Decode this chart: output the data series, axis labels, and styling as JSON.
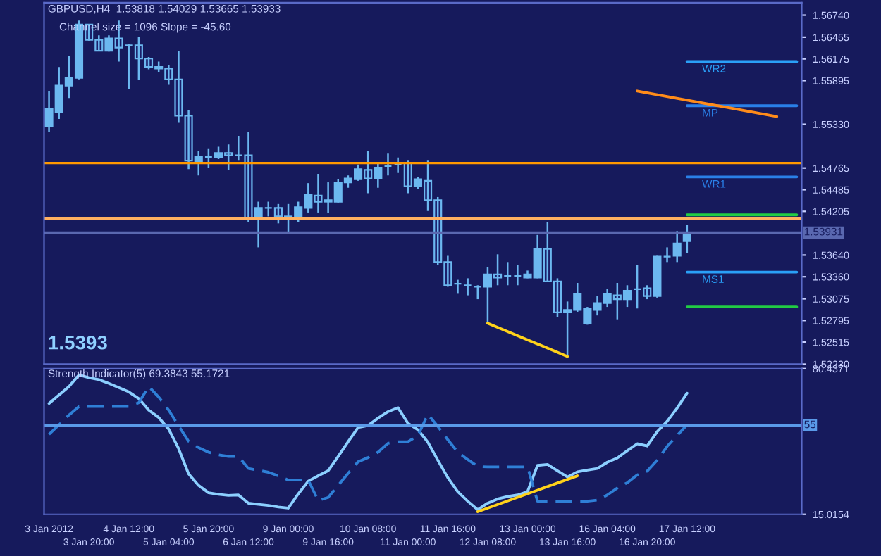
{
  "chart_data": [
    {
      "type": "candlestick",
      "title": "GBPUSD,H4  1.53818 1.54029 1.53665 1.53933",
      "annotations": [
        "Channel size = 1096 Slope = -45.60",
        "1.5393"
      ],
      "categories": [
        null,
        null,
        null,
        null,
        null,
        null,
        null,
        null,
        null,
        null,
        null,
        null,
        null,
        null,
        null,
        null,
        null,
        null,
        null,
        null,
        null,
        null,
        null,
        null,
        null,
        null,
        null,
        null,
        null,
        null,
        null,
        null,
        null,
        null,
        null,
        null,
        null,
        null,
        null,
        null,
        null,
        null,
        null,
        null,
        null,
        null,
        null,
        null,
        null,
        null,
        null,
        null,
        null,
        null,
        null,
        null,
        null,
        null,
        null,
        null,
        null,
        null,
        null,
        null,
        null,
        null,
        null,
        null,
        null,
        null,
        null,
        null,
        null,
        null,
        null,
        null
      ],
      "ohlc": [
        [
          1.553,
          1.5576,
          1.5523,
          1.5553
        ],
        [
          1.5549,
          1.5607,
          1.554,
          1.5583
        ],
        [
          1.5583,
          1.5621,
          1.5567,
          1.5593
        ],
        [
          1.5593,
          1.5667,
          1.5591,
          1.5662
        ],
        [
          1.5662,
          1.5662,
          1.5641,
          1.5642
        ],
        [
          1.5642,
          1.5648,
          1.5628,
          1.5628
        ],
        [
          1.5628,
          1.5648,
          1.5627,
          1.5644
        ],
        [
          1.5644,
          1.5667,
          1.5614,
          1.5632
        ],
        [
          1.5635,
          1.5637,
          1.5579,
          1.5635
        ],
        [
          1.5635,
          1.5646,
          1.559,
          1.5618
        ],
        [
          1.5618,
          1.562,
          1.5604,
          1.5607
        ],
        [
          1.5607,
          1.5614,
          1.56,
          1.5605
        ],
        [
          1.5605,
          1.5609,
          1.5584,
          1.5591
        ],
        [
          1.5591,
          1.5628,
          1.5535,
          1.5544
        ],
        [
          1.5544,
          1.5551,
          1.5475,
          1.5486
        ],
        [
          1.5484,
          1.5498,
          1.5467,
          1.5491
        ],
        [
          1.5491,
          1.5502,
          1.5477,
          1.5491
        ],
        [
          1.5491,
          1.5504,
          1.5488,
          1.5496
        ],
        [
          1.5496,
          1.5507,
          1.5474,
          1.5493
        ],
        [
          1.5493,
          1.5518,
          1.5486,
          1.5493
        ],
        [
          1.5493,
          1.5523,
          1.5407,
          1.5411
        ],
        [
          1.5412,
          1.5433,
          1.5374,
          1.5425
        ],
        [
          1.5425,
          1.5433,
          1.5414,
          1.5425
        ],
        [
          1.5425,
          1.543,
          1.5405,
          1.5414
        ],
        [
          1.5414,
          1.543,
          1.5393,
          1.5412
        ],
        [
          1.5411,
          1.5433,
          1.5407,
          1.5426
        ],
        [
          1.5425,
          1.5457,
          1.5419,
          1.5442
        ],
        [
          1.5441,
          1.5469,
          1.5419,
          1.5433
        ],
        [
          1.5433,
          1.5458,
          1.5418,
          1.5435
        ],
        [
          1.5433,
          1.5462,
          1.5432,
          1.5458
        ],
        [
          1.5458,
          1.5467,
          1.5451,
          1.5463
        ],
        [
          1.5462,
          1.5481,
          1.546,
          1.5475
        ],
        [
          1.5474,
          1.5498,
          1.5444,
          1.5463
        ],
        [
          1.5463,
          1.5484,
          1.5451,
          1.5477
        ],
        [
          1.5479,
          1.5495,
          1.5467,
          1.5479
        ],
        [
          1.5481,
          1.549,
          1.547,
          1.5481
        ],
        [
          1.5483,
          1.5486,
          1.5444,
          1.5453
        ],
        [
          1.5453,
          1.5465,
          1.5449,
          1.5462
        ],
        [
          1.546,
          1.5486,
          1.5421,
          1.5435
        ],
        [
          1.5435,
          1.5439,
          1.5351,
          1.5355
        ],
        [
          1.5355,
          1.5363,
          1.5323,
          1.5325
        ],
        [
          1.5327,
          1.5332,
          1.5314,
          1.5327
        ],
        [
          1.5325,
          1.5334,
          1.5312,
          1.5325
        ],
        [
          1.5323,
          1.5325,
          1.5307,
          1.5323
        ],
        [
          1.5323,
          1.5348,
          1.5276,
          1.5339
        ],
        [
          1.5339,
          1.5365,
          1.5325,
          1.5335
        ],
        [
          1.5337,
          1.5355,
          1.5325,
          1.5337
        ],
        [
          1.5337,
          1.5351,
          1.5325,
          1.5337
        ],
        [
          1.5335,
          1.5344,
          1.5334,
          1.5339
        ],
        [
          1.5335,
          1.539,
          1.5334,
          1.5372
        ],
        [
          1.5372,
          1.5407,
          1.533,
          1.533
        ],
        [
          1.533,
          1.5334,
          1.5284,
          1.529
        ],
        [
          1.529,
          1.5304,
          1.5232,
          1.5293
        ],
        [
          1.5293,
          1.5328,
          1.529,
          1.5314
        ],
        [
          1.5276,
          1.5297,
          1.5274,
          1.5295
        ],
        [
          1.5293,
          1.5311,
          1.5286,
          1.5302
        ],
        [
          1.5302,
          1.532,
          1.5297,
          1.5314
        ],
        [
          1.5312,
          1.5328,
          1.5281,
          1.5307
        ],
        [
          1.5307,
          1.5325,
          1.5297,
          1.5318
        ],
        [
          1.532,
          1.5351,
          1.5295,
          1.532
        ],
        [
          1.5321,
          1.5325,
          1.5307,
          1.5311
        ],
        [
          1.5311,
          1.5363,
          1.5309,
          1.5362
        ],
        [
          1.5362,
          1.5374,
          1.5355,
          1.5362
        ],
        [
          1.5363,
          1.5395,
          1.5355,
          1.5379
        ],
        [
          1.5382,
          1.5403,
          1.5367,
          1.5393
        ],
        null,
        null,
        null,
        null,
        null,
        null,
        null,
        null,
        null,
        null,
        null
      ],
      "colors": [
        "#6cb8f0",
        "#6cb8f0",
        "#6cb8f0",
        "#6cb8f0",
        "#1b1f6b",
        "#1b1f6b",
        "#6cb8f0",
        "#1b1f6b",
        "#6cb8f0",
        "#1b1f6b",
        "#1b1f6b",
        "#1b1f6b",
        "#1b1f6b",
        "#1b1f6b",
        "#1b1f6b",
        "#6cb8f0",
        "#6cb8f0",
        "#6cb8f0",
        "#1b1f6b",
        "#6cb8f0",
        "#1b1f6b",
        "#6cb8f0",
        "#6cb8f0",
        "#1b1f6b",
        "#6cb8f0",
        "#6cb8f0",
        "#6cb8f0",
        "#1b1f6b",
        "#6cb8f0",
        "#6cb8f0",
        "#6cb8f0",
        "#6cb8f0",
        "#1b1f6b",
        "#6cb8f0",
        "#6cb8f0",
        "#6cb8f0",
        "#1b1f6b",
        "#6cb8f0",
        "#1b1f6b",
        "#1b1f6b",
        "#1b1f6b",
        "#6cb8f0",
        "#6cb8f0",
        "#6cb8f0",
        "#6cb8f0",
        "#1b1f6b",
        "#6cb8f0",
        "#6cb8f0",
        "#6cb8f0",
        "#6cb8f0",
        "#1b1f6b",
        "#1b1f6b",
        "#6cb8f0",
        "#6cb8f0",
        "#6cb8f0",
        "#6cb8f0",
        "#6cb8f0",
        "#1b1f6b",
        "#6cb8f0",
        "#6cb8f0",
        "#1b1f6b",
        "#6cb8f0",
        "#6cb8f0",
        "#6cb8f0",
        "#6cb8f0",
        null,
        null,
        null,
        null,
        null,
        null,
        null,
        null,
        null,
        null,
        null
      ],
      "series": [
        {
          "type": "line",
          "name": "WR2",
          "color": "#2aa0f8",
          "values": [
            null,
            null,
            null,
            null,
            null,
            null,
            null,
            null,
            null,
            null,
            null,
            null,
            null,
            null,
            null,
            null,
            null,
            null,
            null,
            null,
            null,
            null,
            null,
            null,
            null,
            null,
            null,
            null,
            null,
            null,
            null,
            null,
            null,
            null,
            null,
            null,
            null,
            null,
            null,
            null,
            null,
            null,
            null,
            null,
            null,
            null,
            null,
            null,
            null,
            null,
            null,
            null,
            null,
            null,
            null,
            null,
            null,
            null,
            null,
            null,
            null,
            null,
            null,
            null,
            1.5614,
            null,
            null,
            null,
            null,
            null,
            null,
            null,
            null,
            null,
            null,
            1.5614
          ]
        },
        {
          "type": "line",
          "name": "MP",
          "color": "#2a80e8",
          "values": [
            null,
            null,
            null,
            null,
            null,
            null,
            null,
            null,
            null,
            null,
            null,
            null,
            null,
            null,
            null,
            null,
            null,
            null,
            null,
            null,
            null,
            null,
            null,
            null,
            null,
            null,
            null,
            null,
            null,
            null,
            null,
            null,
            null,
            null,
            null,
            null,
            null,
            null,
            null,
            null,
            null,
            null,
            null,
            null,
            null,
            null,
            null,
            null,
            null,
            null,
            null,
            null,
            null,
            null,
            null,
            null,
            null,
            null,
            null,
            null,
            null,
            null,
            null,
            null,
            1.5557,
            null,
            null,
            null,
            null,
            null,
            null,
            null,
            null,
            null,
            null,
            1.5557
          ]
        },
        {
          "type": "line",
          "name": "WR1",
          "color": "#2a80e8",
          "values": [
            null,
            null,
            null,
            null,
            null,
            null,
            null,
            null,
            null,
            null,
            null,
            null,
            null,
            null,
            null,
            null,
            null,
            null,
            null,
            null,
            null,
            null,
            null,
            null,
            null,
            null,
            null,
            null,
            null,
            null,
            null,
            null,
            null,
            null,
            null,
            null,
            null,
            null,
            null,
            null,
            null,
            null,
            null,
            null,
            null,
            null,
            null,
            null,
            null,
            null,
            null,
            null,
            null,
            null,
            null,
            null,
            null,
            null,
            null,
            null,
            null,
            null,
            null,
            null,
            1.5465,
            null,
            null,
            null,
            null,
            null,
            null,
            null,
            null,
            null,
            null,
            1.5465
          ]
        },
        {
          "type": "line",
          "name": "MS1",
          "color": "#2aa0f8",
          "values": [
            null,
            null,
            null,
            null,
            null,
            null,
            null,
            null,
            null,
            null,
            null,
            null,
            null,
            null,
            null,
            null,
            null,
            null,
            null,
            null,
            null,
            null,
            null,
            null,
            null,
            null,
            null,
            null,
            null,
            null,
            null,
            null,
            null,
            null,
            null,
            null,
            null,
            null,
            null,
            null,
            null,
            null,
            null,
            null,
            null,
            null,
            null,
            null,
            null,
            null,
            null,
            null,
            null,
            null,
            null,
            null,
            null,
            null,
            null,
            null,
            null,
            null,
            null,
            null,
            1.5342,
            null,
            null,
            null,
            null,
            null,
            null,
            null,
            null,
            null,
            null,
            1.5342
          ]
        },
        {
          "type": "line",
          "color": "#22cc44",
          "values": [
            null,
            null,
            null,
            null,
            null,
            null,
            null,
            null,
            null,
            null,
            null,
            null,
            null,
            null,
            null,
            null,
            null,
            null,
            null,
            null,
            null,
            null,
            null,
            null,
            null,
            null,
            null,
            null,
            null,
            null,
            null,
            null,
            null,
            null,
            null,
            null,
            null,
            null,
            null,
            null,
            null,
            null,
            null,
            null,
            null,
            null,
            null,
            null,
            null,
            null,
            null,
            null,
            null,
            null,
            null,
            null,
            null,
            null,
            null,
            null,
            null,
            null,
            null,
            null,
            1.5416,
            null,
            null,
            null,
            null,
            null,
            null,
            null,
            null,
            null,
            null,
            1.5416
          ]
        },
        {
          "type": "line",
          "color": "#22cc44",
          "values": [
            null,
            null,
            null,
            null,
            null,
            null,
            null,
            null,
            null,
            null,
            null,
            null,
            null,
            null,
            null,
            null,
            null,
            null,
            null,
            null,
            null,
            null,
            null,
            null,
            null,
            null,
            null,
            null,
            null,
            null,
            null,
            null,
            null,
            null,
            null,
            null,
            null,
            null,
            null,
            null,
            null,
            null,
            null,
            null,
            null,
            null,
            null,
            null,
            null,
            null,
            null,
            null,
            null,
            null,
            null,
            null,
            null,
            null,
            null,
            null,
            null,
            null,
            null,
            null,
            1.5297,
            null,
            null,
            null,
            null,
            null,
            null,
            null,
            null,
            null,
            null,
            1.5297
          ]
        },
        {
          "type": "line",
          "color": "#ff8c1a",
          "values": [
            null,
            null,
            null,
            null,
            null,
            null,
            null,
            null,
            null,
            null,
            null,
            null,
            null,
            null,
            null,
            null,
            null,
            null,
            null,
            null,
            null,
            null,
            null,
            null,
            null,
            null,
            null,
            null,
            null,
            null,
            null,
            null,
            null,
            null,
            null,
            null,
            null,
            null,
            null,
            null,
            null,
            null,
            null,
            null,
            null,
            null,
            null,
            null,
            null,
            null,
            null,
            null,
            null,
            null,
            null,
            null,
            null,
            null,
            null,
            1.5576,
            null,
            null,
            null,
            null,
            null,
            null,
            null,
            null,
            null,
            null,
            null,
            null,
            null,
            1.5543,
            null,
            null
          ]
        },
        {
          "type": "line",
          "color": "#ffd21a",
          "values": [
            null,
            null,
            null,
            null,
            null,
            null,
            null,
            null,
            null,
            null,
            null,
            null,
            null,
            null,
            null,
            null,
            null,
            null,
            null,
            null,
            null,
            null,
            null,
            null,
            null,
            null,
            null,
            null,
            null,
            null,
            null,
            null,
            null,
            null,
            null,
            null,
            null,
            null,
            null,
            null,
            null,
            null,
            null,
            null,
            1.5276,
            null,
            null,
            null,
            null,
            null,
            null,
            null,
            1.5233,
            null,
            null,
            null,
            null,
            null,
            null,
            null,
            null,
            null,
            null,
            null,
            null,
            null,
            null,
            null,
            null,
            null,
            null,
            null,
            null,
            null,
            null,
            null
          ]
        }
      ],
      "ref_lines": [
        {
          "axis": "y",
          "value": 1.5483,
          "color": "#ff9900"
        },
        {
          "axis": "y",
          "value": 1.5411,
          "color": "#ffb060"
        },
        {
          "axis": "y",
          "value": 1.53931,
          "label": "1.53931",
          "color": "#5a68b0"
        }
      ],
      "ylim": [
        1.5223,
        1.569
      ],
      "yticks": [
        {
          "value": 1.5674,
          "label": "1.56740"
        },
        {
          "value": 1.56455,
          "label": "1.56455"
        },
        {
          "value": 1.56175,
          "label": "1.56175"
        },
        {
          "value": 1.55895,
          "label": "1.55895"
        },
        {
          "value": 1.5533,
          "label": "1.55330"
        },
        {
          "value": 1.54765,
          "label": "1.54765"
        },
        {
          "value": 1.54485,
          "label": "1.54485"
        },
        {
          "value": 1.54205,
          "label": "1.54205"
        },
        {
          "value": 1.5364,
          "label": "1.53640"
        },
        {
          "value": 1.5336,
          "label": "1.53360"
        },
        {
          "value": 1.53075,
          "label": "1.53075"
        },
        {
          "value": 1.52795,
          "label": "1.52795"
        },
        {
          "value": 1.52515,
          "label": "1.52515"
        },
        {
          "value": 1.5223,
          "label": "1.52230"
        }
      ],
      "tick_labels": "y",
      "grid": false,
      "legend": false
    },
    {
      "type": "line",
      "title": "Strength Indicator(5) 69.3843 55.1721",
      "categories": [
        "3 Jan 2012",
        null,
        null,
        null,
        "3 Jan 20:00",
        null,
        null,
        null,
        "4 Jan 12:00",
        null,
        null,
        null,
        "5 Jan 04:00",
        null,
        null,
        null,
        "5 Jan 20:00",
        null,
        null,
        null,
        "6 Jan 12:00",
        null,
        null,
        null,
        "9 Jan 00:00",
        null,
        null,
        null,
        "9 Jan 16:00",
        null,
        null,
        null,
        "10 Jan 08:00",
        null,
        null,
        null,
        "11 Jan 00:00",
        null,
        null,
        null,
        "11 Jan 16:00",
        null,
        null,
        null,
        "12 Jan 08:00",
        null,
        null,
        null,
        "13 Jan 00:00",
        null,
        null,
        null,
        "13 Jan 16:00",
        null,
        null,
        null,
        "16 Jan 04:00",
        null,
        null,
        null,
        "16 Jan 20:00",
        null,
        null,
        null,
        "17 Jan 12:00",
        null,
        null,
        null,
        null,
        null,
        null,
        null,
        null,
        null,
        null,
        null
      ],
      "series": [
        {
          "color": "#8ccfff",
          "line_style": "solid",
          "values": [
            64.8,
            68.6,
            72.4,
            77.6,
            76.4,
            75.5,
            73.8,
            71.9,
            70.0,
            67.0,
            61.8,
            58.5,
            53.3,
            44.5,
            33.2,
            28.0,
            24.7,
            24.0,
            23.5,
            23.7,
            20.0,
            19.5,
            19.0,
            18.3,
            17.8,
            24.2,
            29.9,
            32.3,
            34.6,
            41.0,
            47.6,
            54.0,
            54.9,
            58.2,
            61.1,
            62.9,
            55.9,
            53.0,
            47.4,
            39.3,
            31.5,
            25.2,
            20.9,
            17.1,
            20.0,
            21.9,
            23.0,
            23.7,
            25.2,
            37.0,
            37.4,
            34.6,
            31.8,
            34.1,
            34.9,
            35.6,
            38.4,
            40.3,
            43.6,
            46.7,
            45.7,
            52.1,
            56.8,
            62.7,
            69.4,
            null,
            null,
            null,
            null,
            null,
            null,
            null,
            null,
            null,
            null,
            null
          ]
        },
        {
          "color": "#2f7fd6",
          "line_style": "dashed",
          "values": [
            50.9,
            55.2,
            59.6,
            63.4,
            63.4,
            63.4,
            63.4,
            63.4,
            63.4,
            65.1,
            72.4,
            67.7,
            61.8,
            54.7,
            47.8,
            45.0,
            42.9,
            41.7,
            41.0,
            41.0,
            35.6,
            34.8,
            33.9,
            32.3,
            30.4,
            30.4,
            30.4,
            21.2,
            22.6,
            28.0,
            33.4,
            38.6,
            40.5,
            42.9,
            46.9,
            47.6,
            47.6,
            50.4,
            59.9,
            54.5,
            48.5,
            42.9,
            39.6,
            36.5,
            36.3,
            36.3,
            36.3,
            36.3,
            36.3,
            20.9,
            20.9,
            20.9,
            20.9,
            20.9,
            20.9,
            21.4,
            23.7,
            26.8,
            29.2,
            32.7,
            34.4,
            39.3,
            45.5,
            50.4,
            55.2,
            null,
            null,
            null,
            null,
            null,
            null,
            null,
            null,
            null,
            null,
            null
          ]
        },
        {
          "color": "#ffd21a",
          "line_style": "solid",
          "values": [
            null,
            null,
            null,
            null,
            null,
            null,
            null,
            null,
            null,
            null,
            null,
            null,
            null,
            null,
            null,
            null,
            null,
            null,
            null,
            null,
            null,
            null,
            null,
            null,
            null,
            null,
            null,
            null,
            null,
            null,
            null,
            null,
            null,
            null,
            null,
            null,
            null,
            null,
            null,
            null,
            null,
            null,
            null,
            16.2,
            null,
            null,
            null,
            null,
            null,
            null,
            null,
            null,
            null,
            32.3,
            null,
            null,
            null,
            null,
            null,
            null,
            null,
            null,
            null,
            null,
            null,
            null,
            null,
            null,
            null,
            null,
            null,
            null,
            null,
            null,
            null,
            null
          ]
        }
      ],
      "ref_lines": [
        {
          "axis": "y",
          "value": 55,
          "label": "55",
          "color": "#5a9ae8"
        }
      ],
      "ylim": [
        15.0154,
        80.4371
      ],
      "yticks": [
        80.4371,
        15.0154
      ],
      "grid": false,
      "legend": false
    }
  ]
}
